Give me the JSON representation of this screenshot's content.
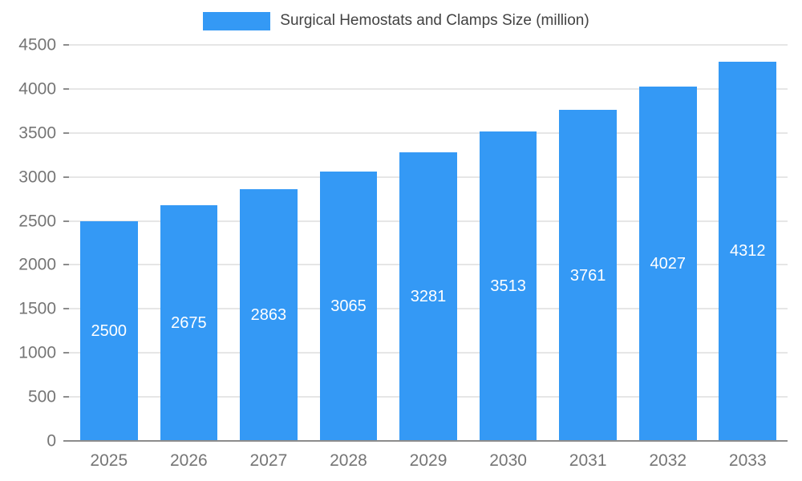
{
  "chart_data": {
    "type": "bar",
    "title": "Surgical Hemostats and Clamps Size (million)",
    "categories": [
      "2025",
      "2026",
      "2027",
      "2028",
      "2029",
      "2030",
      "2031",
      "2032",
      "2033"
    ],
    "values": [
      2500,
      2675,
      2863,
      3065,
      3281,
      3513,
      3761,
      4027,
      4312
    ],
    "xlabel": "",
    "ylabel": "",
    "ylim": [
      0,
      4500
    ],
    "ytick_step": 500,
    "grid": true,
    "legend_position": "top",
    "colors": {
      "bar": "#3499f5",
      "value_label": "#ffffff",
      "axis_label": "#757575",
      "gridline": "#e6e6e6",
      "baseline": "#8c8c8c",
      "title": "#424242",
      "background": "#ffffff"
    }
  },
  "legend": {
    "label": "Surgical Hemostats and Clamps Size (million)"
  }
}
